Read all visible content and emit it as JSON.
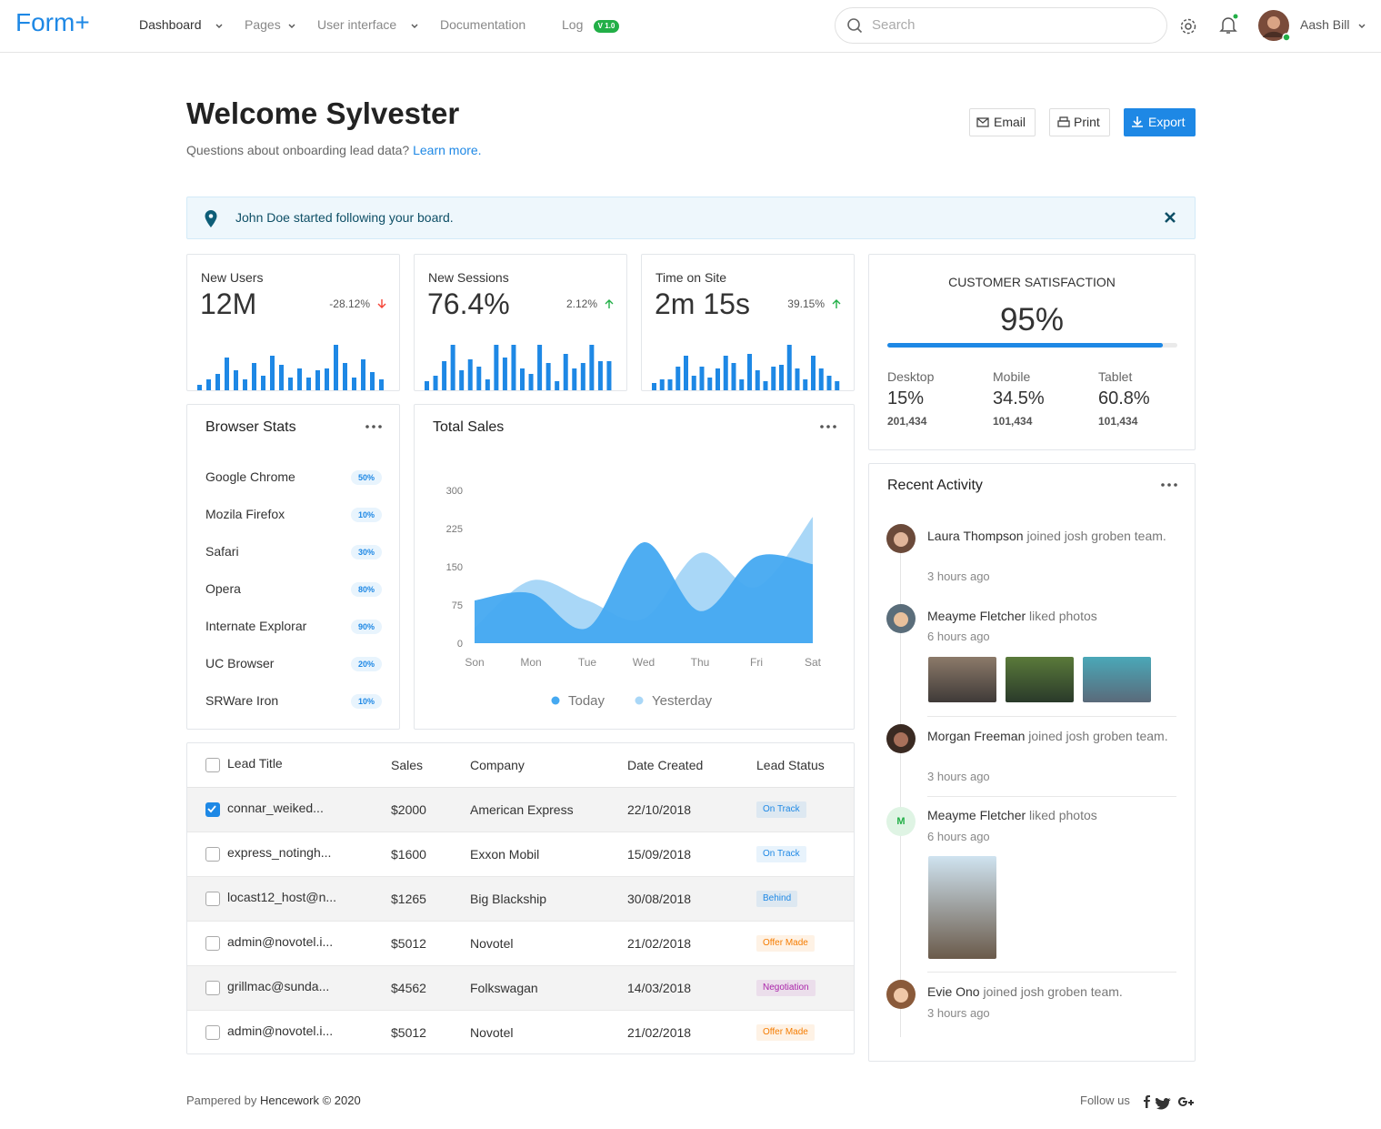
{
  "nav": {
    "brand": "Form+",
    "items": [
      "Dashboard",
      "Pages",
      "User interface",
      "Documentation",
      "Log"
    ],
    "badge": "V 1.0",
    "search_placeholder": "Search",
    "user": "Aash Bill"
  },
  "header": {
    "title": "Welcome Sylvester",
    "subtitle": "Questions about onboarding lead data?",
    "link": "Learn more.",
    "buttons": [
      "Email",
      "Print",
      "Export"
    ]
  },
  "alert": {
    "text": "John Doe started following your board."
  },
  "stats": [
    {
      "label": "New Users",
      "value": "12M",
      "change": "-28.12%",
      "color": "#1e88e5",
      "bars": [
        6,
        12,
        18,
        36,
        22,
        12,
        30,
        16,
        38,
        28,
        14,
        24,
        14,
        22,
        24,
        50,
        30,
        14,
        34,
        20,
        12
      ]
    },
    {
      "label": "New Sessions",
      "value": "76.4%",
      "change": "2.12%",
      "color": "#1e88e5",
      "bars": [
        10,
        16,
        32,
        50,
        22,
        34,
        26,
        12,
        50,
        36,
        50,
        24,
        18,
        50,
        30,
        10,
        40,
        24,
        30,
        50,
        32,
        32
      ]
    },
    {
      "label": "Time on Site",
      "value": "2m 15s",
      "change": "39.15%",
      "color": "#1e88e5",
      "bars": [
        8,
        12,
        12,
        26,
        38,
        16,
        26,
        14,
        24,
        38,
        30,
        12,
        40,
        22,
        10,
        26,
        28,
        50,
        24,
        12,
        38,
        24,
        16,
        10
      ]
    }
  ],
  "satisfaction": {
    "title": "CUSTOMER SATISFACTION",
    "value": 95,
    "value_label": "95%",
    "color": "#1e88e5",
    "devices": [
      {
        "name": "Desktop",
        "percent": "15%",
        "count": "201,434"
      },
      {
        "name": "Mobile",
        "percent": "34.5%",
        "count": "101,434"
      },
      {
        "name": "Tablet",
        "percent": "60.8%",
        "count": "101,434"
      }
    ]
  },
  "browser_stats": {
    "title": "Browser Stats",
    "items": [
      {
        "name": "Google Chrome",
        "percent": "50%"
      },
      {
        "name": "Mozila Firefox",
        "percent": "10%"
      },
      {
        "name": "Safari",
        "percent": "30%"
      },
      {
        "name": "Opera",
        "percent": "80%"
      },
      {
        "name": "Internate Explorar",
        "percent": "90%"
      },
      {
        "name": "UC Browser",
        "percent": "20%"
      },
      {
        "name": "SRWare Iron",
        "percent": "10%"
      }
    ]
  },
  "total_sales": {
    "type": "area",
    "title": "Total Sales",
    "categories": [
      "Son",
      "Mon",
      "Tue",
      "Wed",
      "Thu",
      "Fri",
      "Sat"
    ],
    "ylim": [
      0,
      300
    ],
    "yticks": [
      0,
      75,
      150,
      225,
      300
    ],
    "series": [
      {
        "name": "Today",
        "color": "#45a9f1",
        "values": [
          84,
          98,
          30,
          198,
          63,
          170,
          155
        ]
      },
      {
        "name": "Yesterday",
        "color": "#a9d7f7",
        "values": [
          30,
          123,
          84,
          48,
          177,
          110,
          248
        ]
      }
    ]
  },
  "recent_activity": {
    "title": "Recent Activity",
    "items": [
      {
        "name": "Laura Thompson",
        "action": "joined josh groben team.",
        "time": "3 hours ago"
      },
      {
        "name": "Meayme Fletcher",
        "action": "liked photos",
        "time": "6 hours ago"
      },
      {
        "name": "Morgan Freeman",
        "action": "joined josh groben team.",
        "time": "3 hours ago"
      },
      {
        "name": "Meayme Fletcher",
        "initial": "M",
        "action": "liked photos",
        "time": "6 hours ago"
      },
      {
        "name": "Evie Ono",
        "action": "joined josh groben team.",
        "time": "3 hours ago"
      }
    ]
  },
  "leads": {
    "columns": [
      "Lead Title",
      "Sales",
      "Company",
      "Date Created",
      "Lead Status"
    ],
    "rows": [
      [
        "connar_weiked...",
        "$2000",
        "American Express",
        "22/10/2018",
        "On Track"
      ],
      [
        "express_notingh...",
        "$1600",
        "Exxon Mobil",
        "15/09/2018",
        "On Track"
      ],
      [
        "locast12_host@n...",
        "$1265",
        "Big Blackship",
        "30/08/2018",
        "Behind"
      ],
      [
        "admin@novotel.i...",
        "$5012",
        "Novotel",
        "21/02/2018",
        "Offer Made"
      ],
      [
        "grillmac@sunda...",
        "$4562",
        "Folkswagan",
        "14/03/2018",
        "Negotiation"
      ],
      [
        "admin@novotel.i...",
        "$5012",
        "Novotel",
        "21/02/2018",
        "Offer Made"
      ]
    ],
    "status_colors": [
      "#1e88e5",
      "#1e88e5",
      "#1e88e5",
      "#f57c00",
      "#ab26aa",
      "#f57c00"
    ]
  },
  "footer": {
    "text": "Pampered by",
    "brand": "Hencework © 2020",
    "follow": "Follow us"
  }
}
